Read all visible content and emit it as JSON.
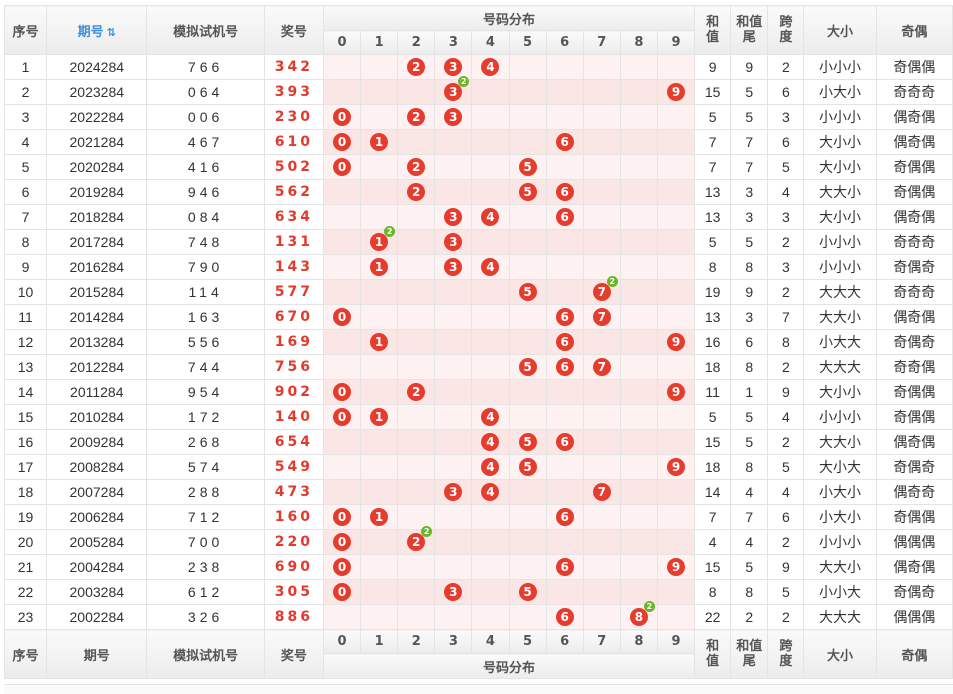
{
  "header": {
    "seq": "序号",
    "issue": "期号",
    "sim": "模拟试机号",
    "prize": "奖号",
    "dist": "号码分布",
    "digits": [
      "0",
      "1",
      "2",
      "3",
      "4",
      "5",
      "6",
      "7",
      "8",
      "9"
    ],
    "sum": "和值",
    "tail": "和值尾",
    "span": "跨度",
    "size": "大小",
    "parity": "奇偶"
  },
  "sort_icon": "sort-icon",
  "rows": [
    {
      "seq": "1",
      "issue": "2024284",
      "sim": "766",
      "prize": "342",
      "balls": [
        {
          "d": 2
        },
        {
          "d": 3
        },
        {
          "d": 4
        }
      ],
      "sum": "9",
      "tail": "9",
      "span": "2",
      "size": "小小小",
      "parity": "奇偶偶"
    },
    {
      "seq": "2",
      "issue": "2023284",
      "sim": "064",
      "prize": "393",
      "balls": [
        {
          "d": 3,
          "badge": "2"
        },
        {
          "d": 9
        }
      ],
      "sum": "15",
      "tail": "5",
      "span": "6",
      "size": "小大小",
      "parity": "奇奇奇"
    },
    {
      "seq": "3",
      "issue": "2022284",
      "sim": "006",
      "prize": "230",
      "balls": [
        {
          "d": 0
        },
        {
          "d": 2
        },
        {
          "d": 3
        }
      ],
      "sum": "5",
      "tail": "5",
      "span": "3",
      "size": "小小小",
      "parity": "偶奇偶"
    },
    {
      "seq": "4",
      "issue": "2021284",
      "sim": "467",
      "prize": "610",
      "balls": [
        {
          "d": 0
        },
        {
          "d": 1
        },
        {
          "d": 6
        }
      ],
      "sum": "7",
      "tail": "7",
      "span": "6",
      "size": "大小小",
      "parity": "偶奇偶"
    },
    {
      "seq": "5",
      "issue": "2020284",
      "sim": "416",
      "prize": "502",
      "balls": [
        {
          "d": 0
        },
        {
          "d": 2
        },
        {
          "d": 5
        }
      ],
      "sum": "7",
      "tail": "7",
      "span": "5",
      "size": "大小小",
      "parity": "奇偶偶"
    },
    {
      "seq": "6",
      "issue": "2019284",
      "sim": "946",
      "prize": "562",
      "balls": [
        {
          "d": 2
        },
        {
          "d": 5
        },
        {
          "d": 6
        }
      ],
      "sum": "13",
      "tail": "3",
      "span": "4",
      "size": "大大小",
      "parity": "奇偶偶"
    },
    {
      "seq": "7",
      "issue": "2018284",
      "sim": "084",
      "prize": "634",
      "balls": [
        {
          "d": 3
        },
        {
          "d": 4
        },
        {
          "d": 6
        }
      ],
      "sum": "13",
      "tail": "3",
      "span": "3",
      "size": "大小小",
      "parity": "偶奇偶"
    },
    {
      "seq": "8",
      "issue": "2017284",
      "sim": "748",
      "prize": "131",
      "balls": [
        {
          "d": 1,
          "badge": "2"
        },
        {
          "d": 3
        }
      ],
      "sum": "5",
      "tail": "5",
      "span": "2",
      "size": "小小小",
      "parity": "奇奇奇"
    },
    {
      "seq": "9",
      "issue": "2016284",
      "sim": "790",
      "prize": "143",
      "balls": [
        {
          "d": 1
        },
        {
          "d": 3
        },
        {
          "d": 4
        }
      ],
      "sum": "8",
      "tail": "8",
      "span": "3",
      "size": "小小小",
      "parity": "奇偶奇"
    },
    {
      "seq": "10",
      "issue": "2015284",
      "sim": "114",
      "prize": "577",
      "balls": [
        {
          "d": 5
        },
        {
          "d": 7,
          "badge": "2"
        }
      ],
      "sum": "19",
      "tail": "9",
      "span": "2",
      "size": "大大大",
      "parity": "奇奇奇"
    },
    {
      "seq": "11",
      "issue": "2014284",
      "sim": "163",
      "prize": "670",
      "balls": [
        {
          "d": 0
        },
        {
          "d": 6
        },
        {
          "d": 7
        }
      ],
      "sum": "13",
      "tail": "3",
      "span": "7",
      "size": "大大小",
      "parity": "偶奇偶"
    },
    {
      "seq": "12",
      "issue": "2013284",
      "sim": "556",
      "prize": "169",
      "balls": [
        {
          "d": 1
        },
        {
          "d": 6
        },
        {
          "d": 9
        }
      ],
      "sum": "16",
      "tail": "6",
      "span": "8",
      "size": "小大大",
      "parity": "奇偶奇"
    },
    {
      "seq": "13",
      "issue": "2012284",
      "sim": "744",
      "prize": "756",
      "balls": [
        {
          "d": 5
        },
        {
          "d": 6
        },
        {
          "d": 7
        }
      ],
      "sum": "18",
      "tail": "8",
      "span": "2",
      "size": "大大大",
      "parity": "奇奇偶"
    },
    {
      "seq": "14",
      "issue": "2011284",
      "sim": "954",
      "prize": "902",
      "balls": [
        {
          "d": 0
        },
        {
          "d": 2
        },
        {
          "d": 9
        }
      ],
      "sum": "11",
      "tail": "1",
      "span": "9",
      "size": "大小小",
      "parity": "奇偶偶"
    },
    {
      "seq": "15",
      "issue": "2010284",
      "sim": "172",
      "prize": "140",
      "balls": [
        {
          "d": 0
        },
        {
          "d": 1
        },
        {
          "d": 4
        }
      ],
      "sum": "5",
      "tail": "5",
      "span": "4",
      "size": "小小小",
      "parity": "奇偶偶"
    },
    {
      "seq": "16",
      "issue": "2009284",
      "sim": "268",
      "prize": "654",
      "balls": [
        {
          "d": 4
        },
        {
          "d": 5
        },
        {
          "d": 6
        }
      ],
      "sum": "15",
      "tail": "5",
      "span": "2",
      "size": "大大小",
      "parity": "偶奇偶"
    },
    {
      "seq": "17",
      "issue": "2008284",
      "sim": "574",
      "prize": "549",
      "balls": [
        {
          "d": 4
        },
        {
          "d": 5
        },
        {
          "d": 9
        }
      ],
      "sum": "18",
      "tail": "8",
      "span": "5",
      "size": "大小大",
      "parity": "奇偶奇"
    },
    {
      "seq": "18",
      "issue": "2007284",
      "sim": "288",
      "prize": "473",
      "balls": [
        {
          "d": 3
        },
        {
          "d": 4
        },
        {
          "d": 7
        }
      ],
      "sum": "14",
      "tail": "4",
      "span": "4",
      "size": "小大小",
      "parity": "偶奇奇"
    },
    {
      "seq": "19",
      "issue": "2006284",
      "sim": "712",
      "prize": "160",
      "balls": [
        {
          "d": 0
        },
        {
          "d": 1
        },
        {
          "d": 6
        }
      ],
      "sum": "7",
      "tail": "7",
      "span": "6",
      "size": "小大小",
      "parity": "奇偶偶"
    },
    {
      "seq": "20",
      "issue": "2005284",
      "sim": "700",
      "prize": "220",
      "balls": [
        {
          "d": 0
        },
        {
          "d": 2,
          "badge": "2"
        }
      ],
      "sum": "4",
      "tail": "4",
      "span": "2",
      "size": "小小小",
      "parity": "偶偶偶"
    },
    {
      "seq": "21",
      "issue": "2004284",
      "sim": "238",
      "prize": "690",
      "balls": [
        {
          "d": 0
        },
        {
          "d": 6
        },
        {
          "d": 9
        }
      ],
      "sum": "15",
      "tail": "5",
      "span": "9",
      "size": "大大小",
      "parity": "偶奇偶"
    },
    {
      "seq": "22",
      "issue": "2003284",
      "sim": "612",
      "prize": "305",
      "balls": [
        {
          "d": 0
        },
        {
          "d": 3
        },
        {
          "d": 5
        }
      ],
      "sum": "8",
      "tail": "8",
      "span": "5",
      "size": "小小大",
      "parity": "奇偶奇"
    },
    {
      "seq": "23",
      "issue": "2002284",
      "sim": "326",
      "prize": "886",
      "balls": [
        {
          "d": 6
        },
        {
          "d": 8,
          "badge": "2"
        }
      ],
      "sum": "22",
      "tail": "2",
      "span": "2",
      "size": "大大大",
      "parity": "偶偶偶"
    }
  ],
  "colors": {
    "ball": "#e63c2e",
    "badge": "#6ab62b",
    "prize": "#e23b2e",
    "header_blue": "#3b8fe0"
  }
}
